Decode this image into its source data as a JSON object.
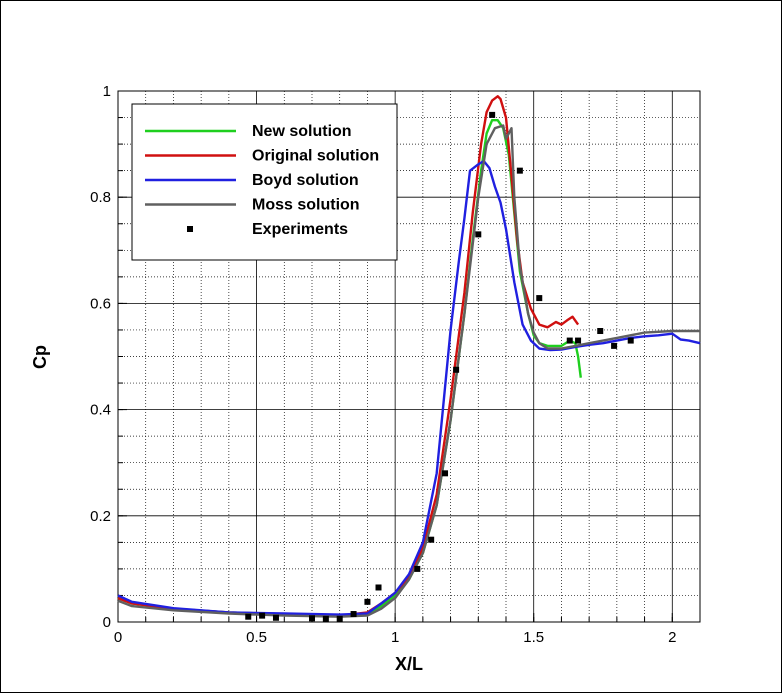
{
  "chart_data": {
    "type": "line",
    "title": "",
    "xlabel": "X/L",
    "ylabel": "Cp",
    "xlim": [
      0,
      2.1
    ],
    "ylim": [
      0,
      1
    ],
    "x_ticks": [
      0,
      0.5,
      1,
      1.5,
      2
    ],
    "x_tick_labels": [
      "0",
      "0.5",
      "1",
      "1.5",
      "2"
    ],
    "y_ticks": [
      0,
      0.2,
      0.4,
      0.6,
      0.8,
      1
    ],
    "y_tick_labels": [
      "0",
      "0.2",
      "0.4",
      "0.6",
      "0.8",
      "1"
    ],
    "grid": "major solid, minor dotted",
    "legend_position": "top-left",
    "series": [
      {
        "name": "New solution",
        "color": "#1fcf1f",
        "style": "line",
        "points": [
          [
            0,
            0.045
          ],
          [
            0.05,
            0.035
          ],
          [
            0.2,
            0.025
          ],
          [
            0.4,
            0.018
          ],
          [
            0.6,
            0.015
          ],
          [
            0.8,
            0.012
          ],
          [
            0.9,
            0.015
          ],
          [
            0.95,
            0.03
          ],
          [
            1.0,
            0.05
          ],
          [
            1.05,
            0.08
          ],
          [
            1.1,
            0.13
          ],
          [
            1.15,
            0.22
          ],
          [
            1.2,
            0.38
          ],
          [
            1.25,
            0.58
          ],
          [
            1.28,
            0.72
          ],
          [
            1.31,
            0.85
          ],
          [
            1.33,
            0.92
          ],
          [
            1.35,
            0.945
          ],
          [
            1.37,
            0.945
          ],
          [
            1.39,
            0.93
          ],
          [
            1.41,
            0.88
          ],
          [
            1.43,
            0.77
          ],
          [
            1.45,
            0.66
          ],
          [
            1.48,
            0.58
          ],
          [
            1.5,
            0.54
          ],
          [
            1.52,
            0.525
          ],
          [
            1.55,
            0.52
          ],
          [
            1.6,
            0.52
          ],
          [
            1.63,
            0.53
          ],
          [
            1.65,
            0.525
          ],
          [
            1.66,
            0.5
          ],
          [
            1.67,
            0.46
          ]
        ]
      },
      {
        "name": "Original solution",
        "color": "#d01010",
        "style": "line",
        "points": [
          [
            0,
            0.045
          ],
          [
            0.05,
            0.035
          ],
          [
            0.2,
            0.025
          ],
          [
            0.4,
            0.018
          ],
          [
            0.6,
            0.015
          ],
          [
            0.8,
            0.012
          ],
          [
            0.9,
            0.018
          ],
          [
            0.95,
            0.035
          ],
          [
            1.0,
            0.055
          ],
          [
            1.05,
            0.085
          ],
          [
            1.1,
            0.14
          ],
          [
            1.15,
            0.24
          ],
          [
            1.2,
            0.42
          ],
          [
            1.25,
            0.62
          ],
          [
            1.28,
            0.77
          ],
          [
            1.31,
            0.9
          ],
          [
            1.33,
            0.96
          ],
          [
            1.35,
            0.982
          ],
          [
            1.37,
            0.99
          ],
          [
            1.38,
            0.985
          ],
          [
            1.4,
            0.95
          ],
          [
            1.42,
            0.84
          ],
          [
            1.44,
            0.72
          ],
          [
            1.46,
            0.64
          ],
          [
            1.49,
            0.59
          ],
          [
            1.52,
            0.56
          ],
          [
            1.55,
            0.555
          ],
          [
            1.58,
            0.565
          ],
          [
            1.6,
            0.56
          ],
          [
            1.62,
            0.568
          ],
          [
            1.64,
            0.575
          ],
          [
            1.66,
            0.56
          ]
        ]
      },
      {
        "name": "Boyd solution",
        "color": "#2020e0",
        "style": "line",
        "points": [
          [
            0,
            0.05
          ],
          [
            0.05,
            0.038
          ],
          [
            0.2,
            0.026
          ],
          [
            0.4,
            0.018
          ],
          [
            0.6,
            0.016
          ],
          [
            0.8,
            0.014
          ],
          [
            0.9,
            0.016
          ],
          [
            0.95,
            0.035
          ],
          [
            1.0,
            0.055
          ],
          [
            1.05,
            0.09
          ],
          [
            1.1,
            0.15
          ],
          [
            1.15,
            0.28
          ],
          [
            1.2,
            0.55
          ],
          [
            1.23,
            0.68
          ],
          [
            1.25,
            0.76
          ],
          [
            1.27,
            0.85
          ],
          [
            1.3,
            0.862
          ],
          [
            1.32,
            0.868
          ],
          [
            1.34,
            0.855
          ],
          [
            1.36,
            0.82
          ],
          [
            1.38,
            0.79
          ],
          [
            1.4,
            0.74
          ],
          [
            1.43,
            0.64
          ],
          [
            1.46,
            0.56
          ],
          [
            1.49,
            0.53
          ],
          [
            1.52,
            0.515
          ],
          [
            1.56,
            0.512
          ],
          [
            1.6,
            0.513
          ],
          [
            1.65,
            0.518
          ],
          [
            1.7,
            0.522
          ],
          [
            1.75,
            0.525
          ],
          [
            1.8,
            0.53
          ],
          [
            1.85,
            0.535
          ],
          [
            1.9,
            0.538
          ],
          [
            1.95,
            0.54
          ],
          [
            2.0,
            0.543
          ],
          [
            2.03,
            0.532
          ],
          [
            2.06,
            0.53
          ],
          [
            2.1,
            0.525
          ]
        ]
      },
      {
        "name": "Moss solution",
        "color": "#606060",
        "style": "line",
        "points": [
          [
            0,
            0.04
          ],
          [
            0.05,
            0.03
          ],
          [
            0.2,
            0.022
          ],
          [
            0.4,
            0.016
          ],
          [
            0.6,
            0.012
          ],
          [
            0.8,
            0.01
          ],
          [
            0.9,
            0.012
          ],
          [
            0.95,
            0.025
          ],
          [
            1.0,
            0.045
          ],
          [
            1.05,
            0.08
          ],
          [
            1.1,
            0.13
          ],
          [
            1.15,
            0.22
          ],
          [
            1.2,
            0.38
          ],
          [
            1.25,
            0.58
          ],
          [
            1.3,
            0.8
          ],
          [
            1.33,
            0.9
          ],
          [
            1.36,
            0.93
          ],
          [
            1.39,
            0.935
          ],
          [
            1.4,
            0.91
          ],
          [
            1.41,
            0.92
          ],
          [
            1.42,
            0.93
          ],
          [
            1.43,
            0.8
          ],
          [
            1.45,
            0.67
          ],
          [
            1.48,
            0.58
          ],
          [
            1.5,
            0.545
          ],
          [
            1.52,
            0.525
          ],
          [
            1.55,
            0.515
          ],
          [
            1.6,
            0.515
          ],
          [
            1.65,
            0.52
          ],
          [
            1.7,
            0.525
          ],
          [
            1.8,
            0.535
          ],
          [
            1.9,
            0.545
          ],
          [
            2.0,
            0.548
          ],
          [
            2.1,
            0.548
          ]
        ]
      },
      {
        "name": "Experiments",
        "color": "#000000",
        "style": "markers",
        "points": [
          [
            0.47,
            0.01
          ],
          [
            0.52,
            0.012
          ],
          [
            0.57,
            0.008
          ],
          [
            0.7,
            0.007
          ],
          [
            0.75,
            0.006
          ],
          [
            0.8,
            0.006
          ],
          [
            0.85,
            0.015
          ],
          [
            0.9,
            0.038
          ],
          [
            0.94,
            0.065
          ],
          [
            1.08,
            0.1
          ],
          [
            1.13,
            0.155
          ],
          [
            1.18,
            0.28
          ],
          [
            1.22,
            0.475
          ],
          [
            1.3,
            0.73
          ],
          [
            1.35,
            0.955
          ],
          [
            1.45,
            0.85
          ],
          [
            1.52,
            0.61
          ],
          [
            1.63,
            0.53
          ],
          [
            1.66,
            0.53
          ],
          [
            1.74,
            0.548
          ],
          [
            1.79,
            0.52
          ],
          [
            1.85,
            0.53
          ]
        ]
      }
    ]
  }
}
